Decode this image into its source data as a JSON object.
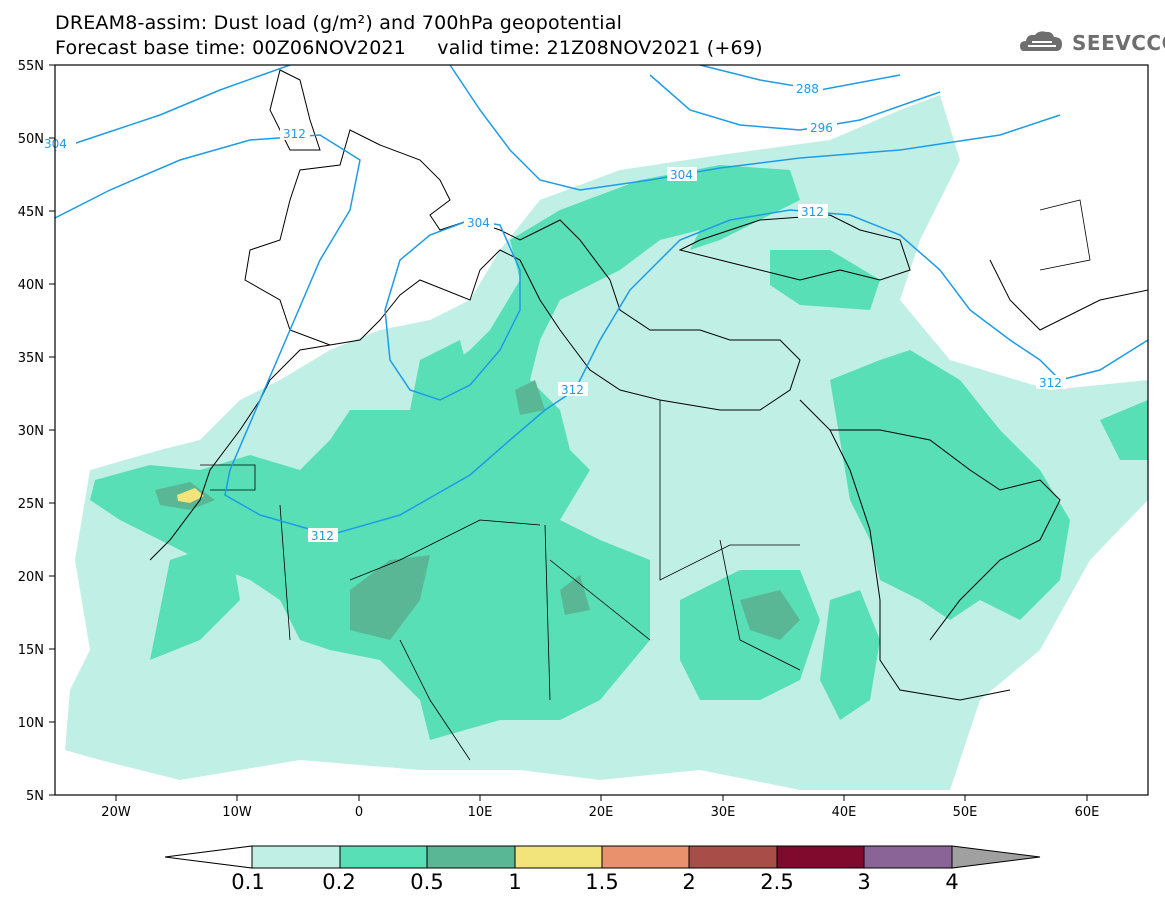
{
  "title_line1": "DREAM8-assim: Dust load (g/m²) and 700hPa geopotential",
  "title_line2": "Forecast base time: 00Z06NOV2021     valid time: 21Z08NOV2021 (+69)",
  "logo_text": "SEEVCCC",
  "axes": {
    "lat_labels": [
      "55N",
      "50N",
      "45N",
      "40N",
      "35N",
      "30N",
      "25N",
      "20N",
      "15N",
      "10N",
      "5N"
    ],
    "lon_labels": [
      "20W",
      "10W",
      "0",
      "10E",
      "20E",
      "30E",
      "40E",
      "50E",
      "60E"
    ]
  },
  "contour_labels": [
    "304",
    "312",
    "288",
    "296",
    "304",
    "312",
    "304",
    "312",
    "312",
    "312"
  ],
  "colorbar": {
    "labels": [
      "0.1",
      "0.2",
      "0.5",
      "1",
      "1.5",
      "2",
      "2.5",
      "3",
      "4"
    ],
    "colors": [
      "#c0efe6",
      "#58dfb6",
      "#5ab796",
      "#f2e47a",
      "#e9906c",
      "#a84d47",
      "#800a2e",
      "#8a6496",
      "#a0a0a0"
    ]
  }
}
